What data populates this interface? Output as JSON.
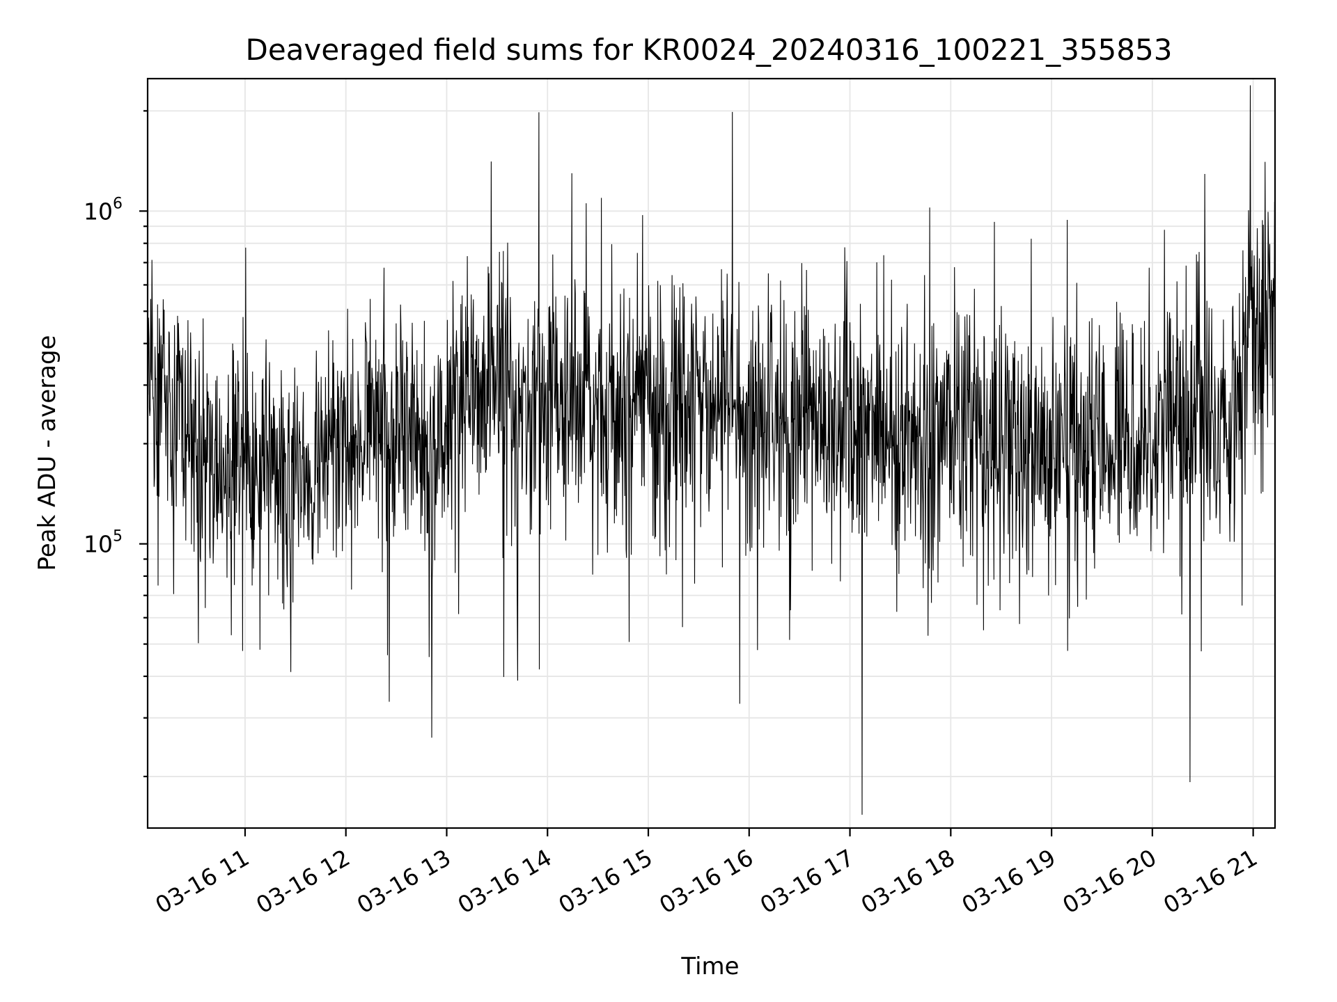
{
  "chart_data": {
    "type": "line",
    "title": "Deaveraged field sums for KR0024_20240316_100221_355853",
    "xlabel": "Time",
    "ylabel": "Peak ADU - average",
    "yscale": "log",
    "grid": true,
    "xlim": [
      "2024-03-16 10:02",
      "2024-03-16 21:13"
    ],
    "ylim": [
      14000,
      2500000
    ],
    "x_ticks": [
      "03-16 11",
      "03-16 12",
      "03-16 13",
      "03-16 14",
      "03-16 15",
      "03-16 16",
      "03-16 17",
      "03-16 18",
      "03-16 19",
      "03-16 20",
      "03-16 21"
    ],
    "y_ticks": [
      {
        "value": 100000,
        "base": "10",
        "exp": "5"
      },
      {
        "value": 1000000,
        "base": "10",
        "exp": "6"
      }
    ],
    "series": [
      {
        "color": "#000000",
        "x": [
          "2024-03-16 10:00",
          "2024-03-16 10:15",
          "2024-03-16 10:30",
          "2024-03-16 10:45",
          "2024-03-16 11:00",
          "2024-03-16 11:15",
          "2024-03-16 11:30",
          "2024-03-16 11:45",
          "2024-03-16 12:00",
          "2024-03-16 12:15",
          "2024-03-16 12:30",
          "2024-03-16 12:45",
          "2024-03-16 13:00",
          "2024-03-16 13:15",
          "2024-03-16 13:30",
          "2024-03-16 13:45",
          "2024-03-16 14:00",
          "2024-03-16 14:15",
          "2024-03-16 14:30",
          "2024-03-16 14:45",
          "2024-03-16 15:00",
          "2024-03-16 15:15",
          "2024-03-16 15:30",
          "2024-03-16 15:45",
          "2024-03-16 16:00",
          "2024-03-16 16:15",
          "2024-03-16 16:30",
          "2024-03-16 16:45",
          "2024-03-16 17:00",
          "2024-03-16 17:15",
          "2024-03-16 17:30",
          "2024-03-16 17:45",
          "2024-03-16 18:00",
          "2024-03-16 18:15",
          "2024-03-16 18:30",
          "2024-03-16 18:45",
          "2024-03-16 19:00",
          "2024-03-16 19:15",
          "2024-03-16 19:30",
          "2024-03-16 19:45",
          "2024-03-16 20:00",
          "2024-03-16 20:15",
          "2024-03-16 20:30",
          "2024-03-16 20:45",
          "2024-03-16 21:00",
          "2024-03-16 21:12"
        ],
        "y": [
          300000,
          280000,
          200000,
          170000,
          180000,
          150000,
          140000,
          180000,
          210000,
          240000,
          250000,
          200000,
          230000,
          280000,
          310000,
          260000,
          270000,
          260000,
          250000,
          280000,
          270000,
          260000,
          250000,
          260000,
          240000,
          250000,
          230000,
          240000,
          250000,
          230000,
          200000,
          210000,
          220000,
          210000,
          190000,
          210000,
          190000,
          200000,
          200000,
          210000,
          220000,
          230000,
          240000,
          230000,
          500000,
          500000
        ]
      }
    ]
  }
}
